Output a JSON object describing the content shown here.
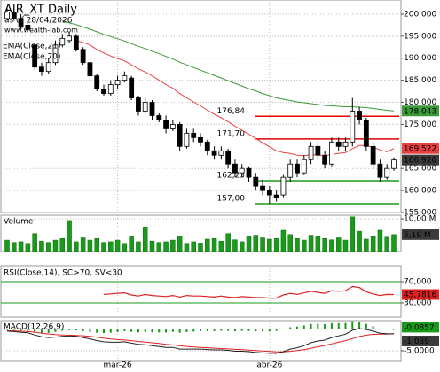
{
  "chart_data": [
    {
      "type": "candlestick",
      "title": "AIR_XT Daily",
      "subtitle": "as of 28/04/2026",
      "source": "www.wealth-lab.com",
      "categories": [
        null,
        null,
        null,
        null,
        null,
        null,
        null,
        null,
        null,
        null,
        null,
        null,
        null,
        null,
        null,
        null,
        "mar-26",
        null,
        null,
        null,
        null,
        null,
        null,
        null,
        null,
        null,
        null,
        null,
        null,
        null,
        null,
        null,
        null,
        null,
        null,
        null,
        null,
        null,
        "abr-26",
        null,
        null,
        null,
        null,
        null,
        null,
        null,
        null,
        null,
        null,
        null,
        null,
        null,
        null,
        null,
        null,
        null,
        null
      ],
      "open": [
        199,
        200.5,
        199,
        197.5,
        193,
        188,
        187,
        189,
        193,
        194,
        195,
        192,
        189,
        186,
        183,
        182,
        184,
        185,
        185.5,
        181,
        178,
        180,
        177,
        176,
        174,
        175,
        170,
        173,
        172,
        171,
        169,
        168,
        169,
        166,
        164,
        165,
        163,
        161,
        160,
        159,
        159,
        163,
        166,
        164,
        167,
        170,
        168,
        166,
        171,
        170,
        171,
        178,
        176,
        170,
        166,
        163,
        165
      ],
      "high": [
        201.5,
        201.5,
        200,
        198,
        193.5,
        189,
        190,
        194,
        195.5,
        196,
        195.5,
        192.5,
        189.5,
        186.5,
        184,
        185,
        186,
        187,
        186,
        181.5,
        181,
        180.5,
        177.5,
        177,
        176,
        175.5,
        174,
        174,
        173,
        171.5,
        170,
        170,
        169.5,
        167,
        166,
        165.5,
        164,
        162.5,
        161,
        160,
        163.5,
        167,
        167,
        168,
        171,
        171,
        169,
        172,
        172,
        172,
        181,
        179,
        176.5,
        171,
        167,
        166,
        167.5
      ],
      "low": [
        198.5,
        198.5,
        196.5,
        196,
        187.5,
        186,
        186.5,
        188.5,
        192.5,
        193.5,
        191.5,
        188.5,
        185,
        182.5,
        181.5,
        181.5,
        183,
        184.5,
        180.5,
        177,
        177.5,
        176,
        175.5,
        173,
        173.5,
        169,
        169.5,
        171,
        170,
        168,
        167,
        167,
        165,
        163,
        163,
        162,
        160,
        159,
        157,
        157.5,
        158.5,
        162,
        163,
        163.5,
        166,
        167,
        165,
        165.5,
        169,
        169,
        170,
        175,
        169,
        165,
        162,
        162.5,
        164.5
      ],
      "close": [
        200.5,
        199,
        197,
        196.5,
        188,
        187,
        189,
        193,
        194.5,
        195,
        192,
        189,
        186,
        183,
        182,
        184,
        185,
        186,
        181,
        178,
        180,
        177,
        176,
        174,
        175,
        170,
        173,
        172,
        171,
        169,
        168,
        169,
        166,
        164,
        165,
        163,
        161,
        160,
        159,
        158.5,
        163,
        166,
        164,
        167,
        170,
        168,
        166,
        171,
        170,
        171,
        178,
        176,
        170,
        166,
        163,
        165,
        166.92
      ],
      "close_last_label": "166,920",
      "close_color": "#3a3a3a",
      "series": [
        {
          "name": "EMA(Close,21)",
          "color": "#e84040",
          "last_value_label": "169,522",
          "values": [
            null,
            null,
            null,
            null,
            null,
            null,
            null,
            null,
            null,
            null,
            194,
            193.6,
            193,
            192,
            191.2,
            190.5,
            189.9,
            189.4,
            188.5,
            187.6,
            186.9,
            186,
            185,
            184,
            183.2,
            182,
            181,
            180.1,
            179.2,
            178.2,
            177.3,
            176.5,
            175.6,
            174.6,
            173.7,
            172.8,
            171.8,
            170.8,
            169.9,
            169,
            168.6,
            168.4,
            168,
            167.9,
            168.1,
            168.1,
            167.9,
            168.2,
            168.4,
            168.6,
            169.5,
            170.2,
            170.2,
            169.8,
            169.2,
            168.8,
            169.522
          ]
        },
        {
          "name": "EMA(Close,70)",
          "color": "#3a9a3a",
          "last_value_label": "178,043",
          "values": [
            null,
            null,
            null,
            null,
            null,
            null,
            null,
            null,
            198.5,
            198,
            197.6,
            197.1,
            196.6,
            196,
            195.4,
            194.9,
            194.4,
            193.9,
            193.3,
            192.7,
            192.2,
            191.6,
            191,
            190.4,
            189.8,
            189.1,
            188.5,
            187.9,
            187.3,
            186.7,
            186.1,
            185.5,
            184.9,
            184.3,
            183.7,
            183.1,
            182.6,
            182,
            181.5,
            181,
            180.7,
            180.4,
            180.1,
            179.9,
            179.7,
            179.5,
            179.3,
            179.2,
            179.1,
            179,
            179,
            178.9,
            178.8,
            178.6,
            178.4,
            178.2,
            178.043
          ]
        }
      ],
      "levels": [
        {
          "value": 176.84,
          "label": "176,84",
          "color": "#e00000"
        },
        {
          "value": 171.7,
          "label": "171,70",
          "color": "#e00000"
        },
        {
          "value": 162.23,
          "label": "162,23",
          "color": "#1a9a1a"
        },
        {
          "value": 157.0,
          "label": "157,00",
          "color": "#1a9a1a"
        }
      ],
      "ylim": [
        155,
        203.2
      ],
      "yticks": [
        {
          "value": 155,
          "label": "155,000"
        },
        {
          "value": 160,
          "label": "160,000"
        },
        {
          "value": 165,
          "label": "165,000"
        },
        {
          "value": 175,
          "label": "175,000"
        },
        {
          "value": 180,
          "label": "180,000"
        },
        {
          "value": 185,
          "label": "185,000"
        },
        {
          "value": 190,
          "label": "190,000"
        },
        {
          "value": 195,
          "label": "195,000"
        },
        {
          "value": 200,
          "label": "200,000"
        }
      ],
      "grid": true
    },
    {
      "type": "bar",
      "title": "Volume",
      "color": "#1a9a1a",
      "last_value_label": "5,19 M",
      "values": [
        3.5,
        2.8,
        3,
        2.5,
        5.5,
        3.2,
        2.8,
        3.5,
        4,
        9.5,
        3,
        4.2,
        3.5,
        4,
        2.8,
        3,
        3.5,
        2.5,
        4.5,
        3,
        7.5,
        3.2,
        2.8,
        3,
        3.5,
        4.8,
        2.5,
        3,
        2.6,
        3.8,
        4,
        3.2,
        5.5,
        3.6,
        3,
        4.5,
        5,
        4.2,
        3.8,
        4,
        6.5,
        5.2,
        4,
        3.5,
        5,
        4.5,
        4,
        3.6,
        4.2,
        3.5,
        10.6,
        6.2,
        3.8,
        4.6,
        6.5,
        4.4,
        5.19
      ],
      "ylim": [
        0,
        11.1
      ],
      "yticks": [
        {
          "value": 10,
          "label": "10,00 M"
        }
      ]
    },
    {
      "type": "line",
      "title": "RSI(Close,14), SC>70, SV<30",
      "color": "#e02020",
      "last_value_label": "45,7816",
      "values": [
        null,
        null,
        null,
        null,
        null,
        null,
        null,
        null,
        null,
        null,
        null,
        null,
        null,
        null,
        46,
        47,
        48,
        49,
        45,
        43,
        46,
        44,
        43,
        42,
        44,
        41,
        44,
        43,
        43,
        42,
        41,
        43,
        41,
        40,
        42,
        41,
        40,
        40,
        39,
        39,
        45,
        48,
        46,
        49,
        52,
        50,
        48,
        53,
        52,
        53,
        61,
        59,
        51,
        47,
        44,
        46,
        45.7816
      ],
      "ylim": [
        3.3,
        100
      ],
      "yticks": [
        {
          "value": 30,
          "label": "30,000"
        },
        {
          "value": 70,
          "label": "70,000"
        }
      ],
      "grid_color": "#1a9a1a"
    },
    {
      "type": "macd",
      "title": "MACD(12,26,9)",
      "macd": {
        "color": "#202020",
        "last_value_label": "-1,039",
        "values": [
          -0.4,
          -0.5,
          -0.7,
          -0.8,
          -1.3,
          -1.7,
          -1.9,
          -1.8,
          -1.6,
          -1.5,
          -1.6,
          -1.9,
          -2.2,
          -2.6,
          -2.9,
          -3.0,
          -3.0,
          -2.9,
          -3.2,
          -3.5,
          -3.6,
          -3.8,
          -4.0,
          -4.2,
          -4.2,
          -4.6,
          -4.6,
          -4.6,
          -4.6,
          -4.7,
          -4.8,
          -4.8,
          -4.9,
          -5.1,
          -5.1,
          -5.2,
          -5.4,
          -5.5,
          -5.6,
          -5.6,
          -5.2,
          -4.6,
          -4.3,
          -3.8,
          -3.1,
          -2.7,
          -2.5,
          -1.9,
          -1.5,
          -1.1,
          -0.2,
          0.2,
          0.0,
          -0.4,
          -0.9,
          -1.0,
          -1.039
        ]
      },
      "signal": {
        "color": "#e02020",
        "values": [
          -0.3,
          -0.34,
          -0.41,
          -0.49,
          -0.65,
          -0.86,
          -1.07,
          -1.22,
          -1.3,
          -1.34,
          -1.39,
          -1.49,
          -1.63,
          -1.82,
          -2.04,
          -2.23,
          -2.38,
          -2.49,
          -2.63,
          -2.81,
          -2.97,
          -3.13,
          -3.3,
          -3.48,
          -3.63,
          -3.82,
          -3.98,
          -4.1,
          -4.2,
          -4.3,
          -4.4,
          -4.48,
          -4.56,
          -4.67,
          -4.76,
          -4.85,
          -4.96,
          -5.07,
          -5.17,
          -5.26,
          -5.25,
          -5.12,
          -4.96,
          -4.73,
          -4.4,
          -4.06,
          -3.75,
          -3.38,
          -3.0,
          -2.62,
          -2.14,
          -1.67,
          -1.34,
          -1.15,
          -1.1,
          -1.08,
          -0.9533
        ]
      },
      "histogram": {
        "color": "#1a9a1a",
        "last_value_label": "-0,0857",
        "values": [
          -0.1,
          -0.16,
          -0.29,
          -0.31,
          -0.65,
          -0.84,
          -0.83,
          -0.58,
          -0.3,
          -0.16,
          -0.21,
          -0.41,
          -0.57,
          -0.78,
          -0.86,
          -0.77,
          -0.62,
          -0.41,
          -0.57,
          -0.69,
          -0.63,
          -0.67,
          -0.7,
          -0.72,
          -0.57,
          -0.78,
          -0.62,
          -0.5,
          -0.4,
          -0.4,
          -0.4,
          -0.32,
          -0.34,
          -0.43,
          -0.34,
          -0.35,
          -0.44,
          -0.43,
          -0.43,
          -0.34,
          0.05,
          0.52,
          0.66,
          0.93,
          1.3,
          1.36,
          1.25,
          1.48,
          1.5,
          1.52,
          1.94,
          1.87,
          1.34,
          0.75,
          0.2,
          0.08,
          -0.0857
        ]
      },
      "ylim": [
        -7.5,
        2.08
      ],
      "yticks": [
        {
          "value": -5,
          "label": "-5,0000"
        }
      ]
    }
  ]
}
